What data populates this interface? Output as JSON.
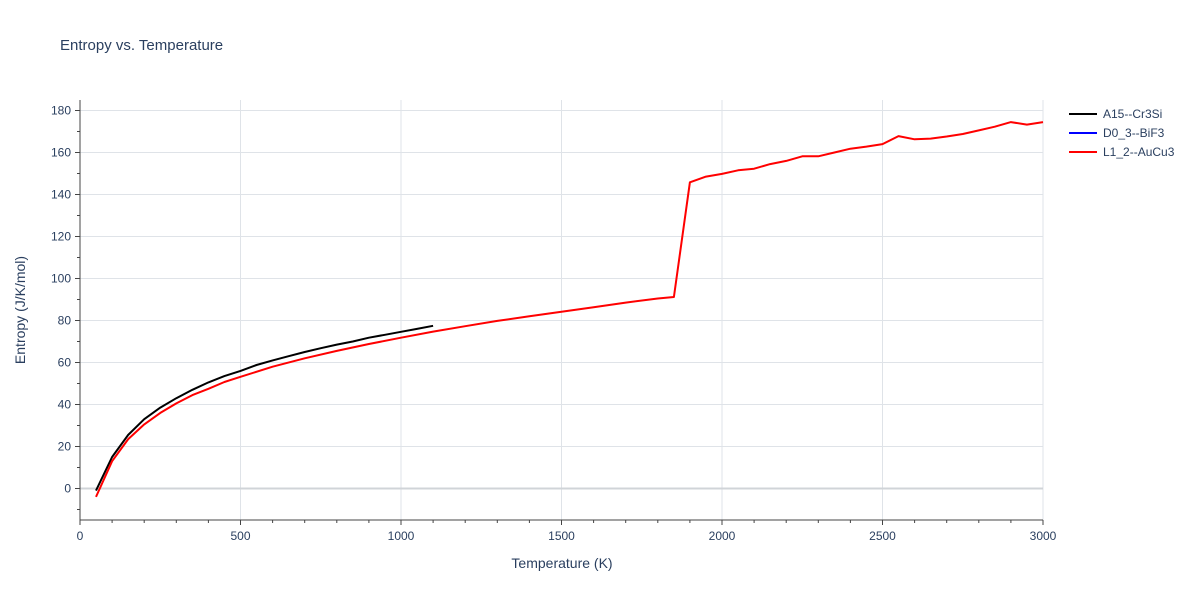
{
  "chart_data": {
    "type": "line",
    "title": "Entropy vs. Temperature",
    "xlabel": "Temperature (K)",
    "ylabel": "Entropy (J/K/mol)",
    "xlim": [
      0,
      3000
    ],
    "ylim": [
      -15,
      185
    ],
    "x_ticks": [
      0,
      500,
      1000,
      1500,
      2000,
      2500,
      3000
    ],
    "y_ticks": [
      0,
      20,
      40,
      60,
      80,
      100,
      120,
      140,
      160,
      180
    ],
    "grid": true,
    "legend_position": "top-right",
    "series": [
      {
        "name": "A15--Cr3Si",
        "color": "#000000",
        "x": [
          50,
          100,
          150,
          200,
          250,
          300,
          350,
          400,
          450,
          500,
          550,
          600,
          650,
          700,
          750,
          800,
          850,
          900,
          950,
          1000,
          1050,
          1100
        ],
        "y": [
          -1,
          15,
          25.5,
          33,
          38.5,
          43,
          47,
          50.5,
          53.5,
          56,
          58.8,
          61,
          63,
          65,
          66.8,
          68.5,
          70,
          71.8,
          73.2,
          74.6,
          76,
          77.5
        ]
      },
      {
        "name": "D0_3--BiF3",
        "color": "#0000ff",
        "x": [],
        "y": []
      },
      {
        "name": "L1_2--AuCu3",
        "color": "#ff0000",
        "x": [
          50,
          100,
          150,
          200,
          250,
          300,
          350,
          400,
          450,
          500,
          600,
          700,
          800,
          900,
          1000,
          1100,
          1200,
          1300,
          1400,
          1500,
          1600,
          1700,
          1800,
          1850,
          1900,
          1950,
          2000,
          2050,
          2100,
          2150,
          2200,
          2250,
          2300,
          2350,
          2400,
          2450,
          2500,
          2550,
          2600,
          2650,
          2700,
          2750,
          2800,
          2850,
          2900,
          2950,
          3000
        ],
        "y": [
          -4,
          13,
          23.5,
          30.5,
          36,
          40.5,
          44.5,
          47.5,
          50.7,
          53.2,
          58,
          62,
          65.5,
          68.8,
          71.8,
          74.7,
          77.3,
          79.8,
          82,
          84.2,
          86.3,
          88.5,
          90.5,
          91.2,
          145.8,
          148.5,
          149.8,
          151.5,
          152.3,
          154.5,
          156,
          158.2,
          158.2,
          160,
          161.8,
          162.8,
          164,
          167.8,
          166.3,
          166.6,
          167.6,
          168.8,
          170.5,
          172.3,
          174.5,
          173.3,
          174.5
        ]
      }
    ]
  }
}
